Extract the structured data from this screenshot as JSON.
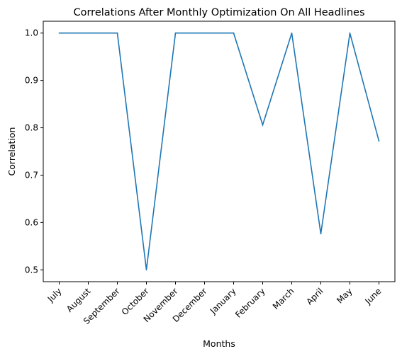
{
  "chart_data": {
    "type": "line",
    "title": "Correlations After Monthly Optimization On All Headlines",
    "xlabel": "Months",
    "ylabel": "Correlation",
    "categories": [
      "July",
      "August",
      "September",
      "October",
      "November",
      "December",
      "January",
      "February",
      "March",
      "April",
      "May",
      "June"
    ],
    "series": [
      {
        "values": [
          1.0,
          1.0,
          1.0,
          0.5,
          1.0,
          1.0,
          1.0,
          0.806,
          1.0,
          0.576,
          1.0,
          0.772
        ],
        "color": "#1f77b4"
      }
    ],
    "ylim": [
      0.475,
      1.025
    ],
    "yticks": [
      "0.5",
      "0.6",
      "0.7",
      "0.8",
      "0.9",
      "1.0"
    ],
    "grid": false,
    "legend": "none"
  }
}
